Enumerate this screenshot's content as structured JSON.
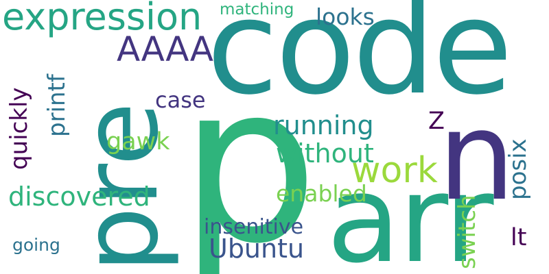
{
  "words": {
    "code": "code",
    "p": "p",
    "arr": "arr",
    "pre": "pre",
    "n": "n",
    "expression": "expression",
    "aaaa": "AAAA",
    "work": "work",
    "running": "running",
    "without": "without",
    "discovered": "discovered",
    "ubuntu": "Ubuntu",
    "enabled": "enabled",
    "insenitive": "insenitive",
    "looks": "looks",
    "matching": "matching",
    "case": "case",
    "gawk": "gawk",
    "z": "Z",
    "posix": "posix",
    "switch": "switch",
    "printf": "printf",
    "quickly": "quickly",
    "going": "going",
    "lt": "lt"
  },
  "colors": {
    "teal": "#218e8d",
    "green": "#2fb47c",
    "sea": "#25a584",
    "purple": "#433580",
    "indigo": "#3a548c",
    "lime": "#9bd93c",
    "lightgreen": "#7ad151",
    "darkpurple": "#440154",
    "steel": "#2c728e",
    "background": "#ffffff"
  }
}
